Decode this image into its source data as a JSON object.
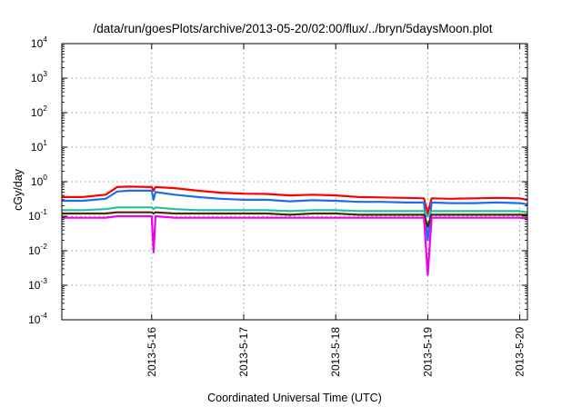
{
  "chart_data": {
    "type": "line",
    "title": "/data/run/goesPlots/archive/2013-05-20/02:00/flux/../bryn/5daysMoon.plot",
    "xlabel": "Coordinated Universal Time (UTC)",
    "ylabel": "cGy/day",
    "yscale": "log",
    "ylim": [
      0.0001,
      10000
    ],
    "y_ticks": [
      {
        "base": "10",
        "exp": "-4",
        "value": 0.0001
      },
      {
        "base": "10",
        "exp": "-3",
        "value": 0.001
      },
      {
        "base": "10",
        "exp": "-2",
        "value": 0.01
      },
      {
        "base": "10",
        "exp": "-1",
        "value": 0.1
      },
      {
        "base": "10",
        "exp": "0",
        "value": 1
      },
      {
        "base": "10",
        "exp": "1",
        "value": 10
      },
      {
        "base": "10",
        "exp": "2",
        "value": 100
      },
      {
        "base": "10",
        "exp": "3",
        "value": 1000
      },
      {
        "base": "10",
        "exp": "4",
        "value": 10000
      }
    ],
    "x_range": [
      "2013-05-15T00:34",
      "2013-05-20T02:00"
    ],
    "x_ticks": [
      "2013-5-16",
      "2013-5-17",
      "2013-5-18",
      "2013-5-19",
      "2013-5-20"
    ],
    "grid": true,
    "legend": "none",
    "x": [
      "2013-05-15T00:34",
      "2013-05-15T06:00",
      "2013-05-15T12:00",
      "2013-05-15T15:00",
      "2013-05-15T18:00",
      "2013-05-16T00:00",
      "2013-05-16T00:30",
      "2013-05-16T01:00",
      "2013-05-16T06:00",
      "2013-05-16T12:00",
      "2013-05-16T18:00",
      "2013-05-17T00:00",
      "2013-05-17T06:00",
      "2013-05-17T12:00",
      "2013-05-17T18:00",
      "2013-05-18T00:00",
      "2013-05-18T06:00",
      "2013-05-18T12:00",
      "2013-05-18T18:00",
      "2013-05-18T23:00",
      "2013-05-19T00:00",
      "2013-05-19T01:00",
      "2013-05-19T06:00",
      "2013-05-19T12:00",
      "2013-05-19T18:00",
      "2013-05-20T00:00",
      "2013-05-20T02:00"
    ],
    "series": [
      {
        "color": "#ff0000",
        "values": [
          0.36,
          0.36,
          0.42,
          0.7,
          0.72,
          0.7,
          0.55,
          0.7,
          0.65,
          0.55,
          0.48,
          0.45,
          0.44,
          0.4,
          0.42,
          0.4,
          0.36,
          0.35,
          0.34,
          0.33,
          0.12,
          0.33,
          0.32,
          0.33,
          0.34,
          0.33,
          0.3
        ]
      },
      {
        "color": "#1a6ff0",
        "values": [
          0.28,
          0.28,
          0.32,
          0.52,
          0.55,
          0.55,
          0.3,
          0.5,
          0.42,
          0.36,
          0.32,
          0.3,
          0.3,
          0.27,
          0.29,
          0.28,
          0.26,
          0.26,
          0.25,
          0.25,
          0.02,
          0.25,
          0.24,
          0.24,
          0.25,
          0.24,
          0.22
        ]
      },
      {
        "color": "#20c0a0",
        "values": [
          0.15,
          0.15,
          0.16,
          0.18,
          0.18,
          0.18,
          0.16,
          0.18,
          0.16,
          0.15,
          0.15,
          0.15,
          0.15,
          0.14,
          0.15,
          0.15,
          0.14,
          0.14,
          0.14,
          0.14,
          0.1,
          0.14,
          0.14,
          0.14,
          0.14,
          0.14,
          0.13
        ]
      },
      {
        "color": "#4a2a00",
        "values": [
          0.12,
          0.12,
          0.12,
          0.13,
          0.13,
          0.13,
          0.12,
          0.13,
          0.12,
          0.12,
          0.12,
          0.12,
          0.12,
          0.11,
          0.12,
          0.12,
          0.11,
          0.11,
          0.11,
          0.11,
          0.05,
          0.11,
          0.11,
          0.11,
          0.11,
          0.11,
          0.11
        ]
      },
      {
        "color": "#ee00ee",
        "values": [
          0.09,
          0.09,
          0.09,
          0.1,
          0.1,
          0.1,
          0.009,
          0.1,
          0.09,
          0.09,
          0.09,
          0.09,
          0.09,
          0.09,
          0.09,
          0.09,
          0.09,
          0.09,
          0.09,
          0.09,
          0.002,
          0.09,
          0.09,
          0.09,
          0.09,
          0.09,
          0.085
        ]
      }
    ]
  }
}
